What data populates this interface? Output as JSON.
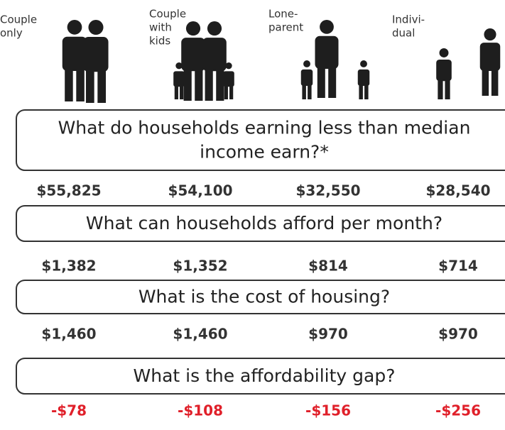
{
  "households": [
    {
      "label": [
        "Couple",
        "only"
      ]
    },
    {
      "label": [
        "Couple",
        "with",
        "kids"
      ]
    },
    {
      "label": [
        "Lone-",
        "parent"
      ]
    },
    {
      "label": [
        "Indivi-",
        "dual"
      ]
    }
  ],
  "sections": [
    {
      "question": [
        "What do households earning less than median",
        "income earn?*"
      ],
      "values": [
        "$55,825",
        "$54,100",
        "$32,550",
        "$28,540"
      ]
    },
    {
      "question": [
        "What can households afford per month?"
      ],
      "values": [
        "$1,382",
        "$1,352",
        "$814",
        "$714"
      ]
    },
    {
      "question": [
        "What is the cost of housing?"
      ],
      "values": [
        "$1,460",
        "$1,460",
        "$970",
        "$970"
      ]
    },
    {
      "question": [
        "What is the affordability gap?"
      ],
      "values": [
        "-$78",
        "-$108",
        "-$156",
        "-$256"
      ]
    }
  ]
}
